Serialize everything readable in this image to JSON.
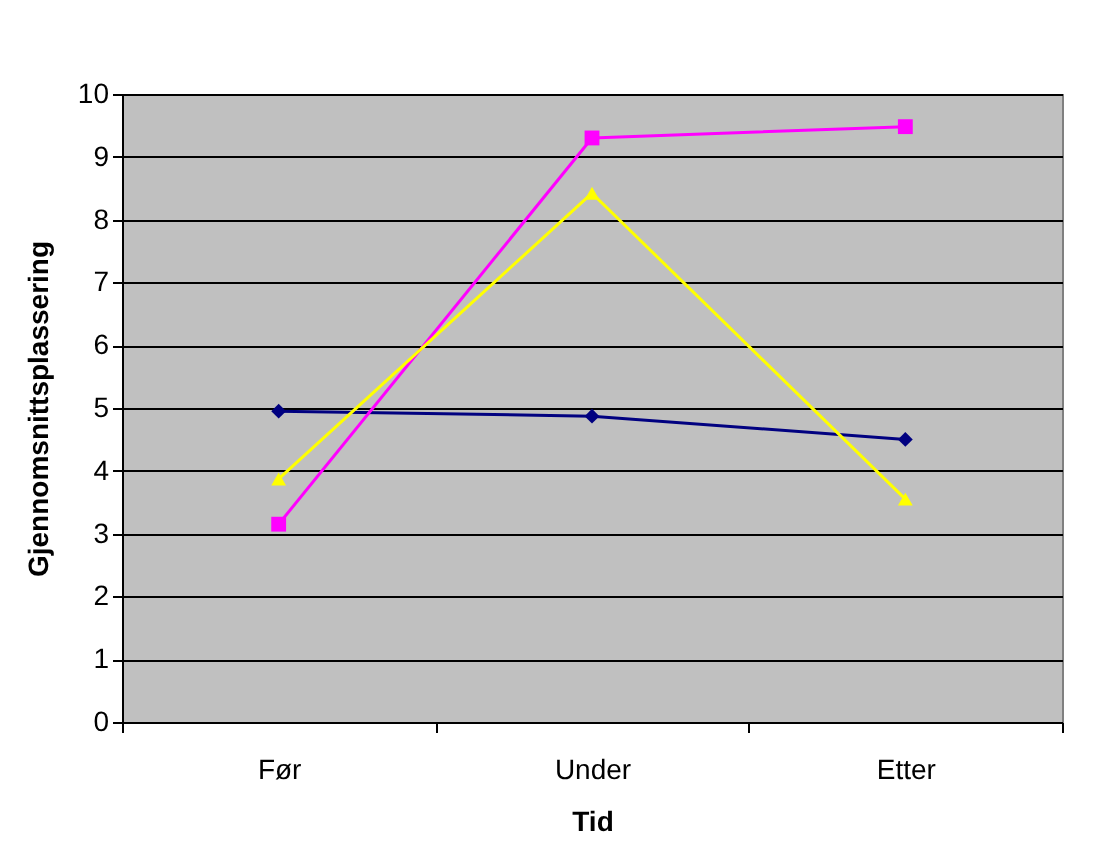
{
  "chart_data": {
    "type": "line",
    "xlabel": "Tid",
    "ylabel": "Gjennomsnittsplassering",
    "categories": [
      "Før",
      "Under",
      "Etter"
    ],
    "series": [
      {
        "color": "#000080",
        "marker": "diamond",
        "values": [
          4.95,
          4.87,
          4.5
        ]
      },
      {
        "color": "#ff00ff",
        "marker": "square",
        "values": [
          3.15,
          9.3,
          9.48
        ]
      },
      {
        "color": "#ffff00",
        "marker": "triangle",
        "values": [
          3.87,
          8.42,
          3.55
        ]
      }
    ],
    "ylim": [
      0,
      10
    ],
    "yticks": [
      0,
      1,
      2,
      3,
      4,
      5,
      6,
      7,
      8,
      9,
      10
    ],
    "grid": "y"
  }
}
